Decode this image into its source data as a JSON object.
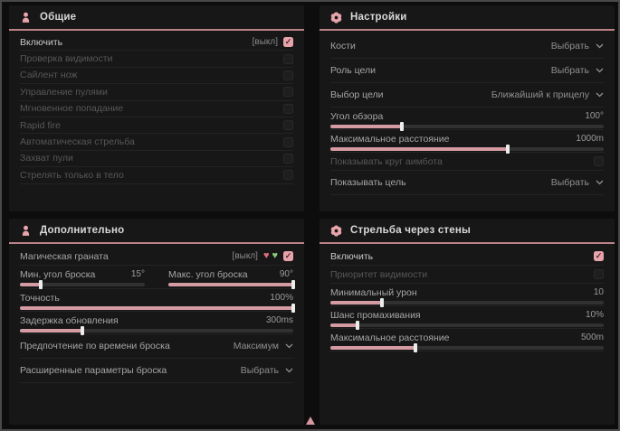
{
  "colors": {
    "accent": "#d49ba2",
    "header_line": "#bd8289",
    "green_heart": "#8bc77c",
    "red_heart": "#dd6f7b"
  },
  "panels": {
    "general": {
      "title": "Общие",
      "rows": [
        {
          "label": "Включить",
          "tag": "[выкл]",
          "checked": true,
          "disabled": false
        },
        {
          "label": "Проверка видимости",
          "checked": false,
          "disabled": true
        },
        {
          "label": "Сайлент нож",
          "checked": false,
          "disabled": true
        },
        {
          "label": "Управление пулями",
          "checked": false,
          "disabled": true
        },
        {
          "label": "Мгновенное попадание",
          "checked": false,
          "disabled": true
        },
        {
          "label": "Rapid fire",
          "checked": false,
          "disabled": true
        },
        {
          "label": "Автоматическая стрельба",
          "checked": false,
          "disabled": true
        },
        {
          "label": "Захват пули",
          "checked": false,
          "disabled": true
        },
        {
          "label": "Стрелять только в тело",
          "checked": false,
          "disabled": true
        }
      ]
    },
    "settings": {
      "title": "Настройки",
      "bones": {
        "label": "Кости",
        "value": "Выбрать"
      },
      "target_role": {
        "label": "Роль цели",
        "value": "Выбрать"
      },
      "target_select": {
        "label": "Выбор цели",
        "value": "Ближайший к прицелу"
      },
      "fov": {
        "label": "Угол обзора",
        "value": "100°",
        "percent": 26
      },
      "max_distance": {
        "label": "Максимальное расстояние",
        "value": "1000m",
        "percent": 65
      },
      "show_circle": {
        "label": "Показывать круг аимбота",
        "checked": false,
        "disabled": true
      },
      "show_target": {
        "label": "Показывать цель",
        "value": "Выбрать"
      }
    },
    "additional": {
      "title": "Дополнительно",
      "magic_grenade": {
        "label": "Магическая граната",
        "tag": "[выкл]",
        "checked": true
      },
      "min_angle": {
        "label": "Мин. угол броска",
        "value": "15°",
        "percent": 17
      },
      "max_angle": {
        "label": "Макс. угол броска",
        "value": "90°",
        "percent": 100
      },
      "accuracy": {
        "label": "Точность",
        "value": "100%",
        "percent": 100
      },
      "update_delay": {
        "label": "Задержка обновления",
        "value": "300ms",
        "percent": 23
      },
      "throw_time": {
        "label": "Предпочтение по времени броска",
        "value": "Максимум"
      },
      "advanced": {
        "label": "Расширенные параметры броска",
        "value": "Выбрать"
      }
    },
    "wallbang": {
      "title": "Стрельба через стены",
      "enable": {
        "label": "Включить",
        "checked": true,
        "disabled": false
      },
      "visibility_priority": {
        "label": "Приоритет видимости",
        "checked": false,
        "disabled": true
      },
      "min_damage": {
        "label": "Минимальный урон",
        "value": "10",
        "percent": 19
      },
      "miss_chance": {
        "label": "Шанс промахивания",
        "value": "10%",
        "percent": 10
      },
      "max_distance": {
        "label": "Максимальное расстояние",
        "value": "500m",
        "percent": 31
      }
    }
  }
}
